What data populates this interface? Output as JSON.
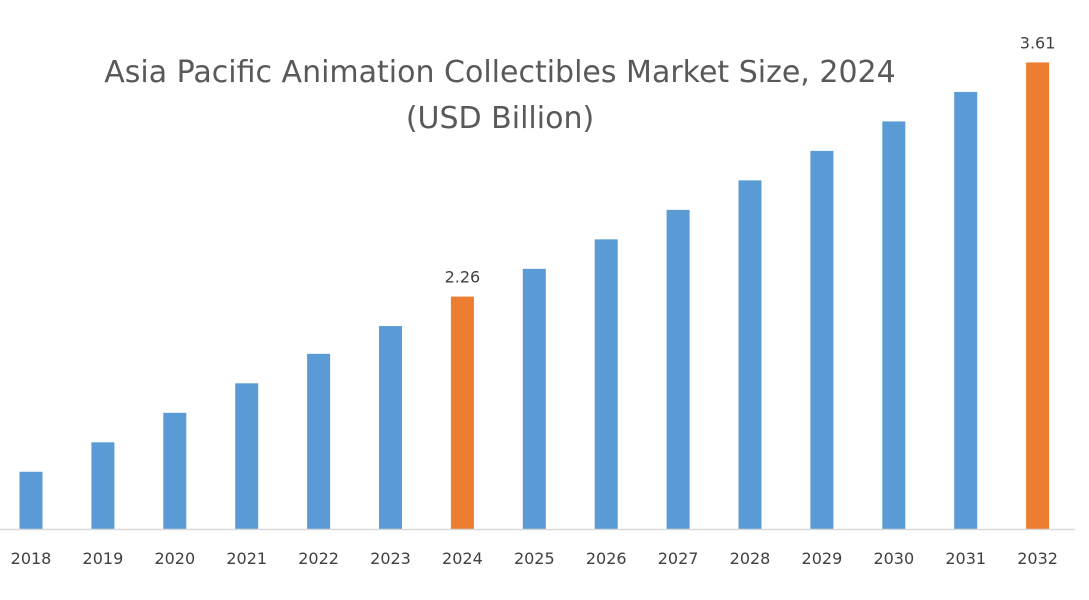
{
  "chart_data": {
    "type": "bar",
    "title": "Asia Pacific Animation Collectibles Market Size, 2024",
    "subtitle": "(USD Billion)",
    "xlabel": "",
    "ylabel": "",
    "categories": [
      "2018",
      "2019",
      "2020",
      "2021",
      "2022",
      "2023",
      "2024",
      "2025",
      "2026",
      "2027",
      "2028",
      "2029",
      "2030",
      "2031",
      "2032"
    ],
    "values": [
      1.25,
      1.42,
      1.59,
      1.76,
      1.93,
      2.09,
      2.26,
      2.42,
      2.59,
      2.76,
      2.93,
      3.1,
      3.27,
      3.44,
      3.61
    ],
    "data_labels": {
      "2024": "2.26",
      "2032": "3.61"
    },
    "highlight": [
      "2024",
      "2032"
    ],
    "ylim": [
      0.92,
      3.97
    ],
    "grid": false,
    "legend": "none",
    "colors": {
      "default": "#5B9BD5",
      "highlight": "#ED7D31",
      "axis": "#D9D9D9"
    }
  }
}
